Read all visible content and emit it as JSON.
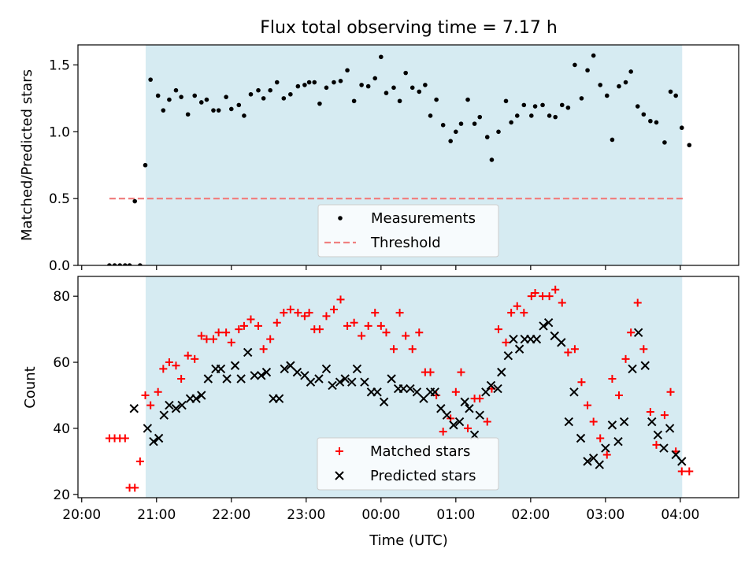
{
  "title": "Flux total observing time = 7.17 h",
  "xlabel": "Time (UTC)",
  "colors": {
    "band": "#add8e6",
    "measurement": "#000000",
    "threshold": "#f08080",
    "matched": "#ff0000",
    "predicted": "#000000"
  },
  "chart_data": [
    {
      "type": "scatter",
      "ylabel": "Matched/Predicted stars",
      "ylim": [
        0,
        1.65
      ],
      "yticks": [
        0.0,
        0.5,
        1.0,
        1.5
      ],
      "ytick_labels": [
        "0.0",
        "0.5",
        "1.0",
        "1.5"
      ],
      "xlim_hours": [
        19.95,
        28.78
      ],
      "shaded_span_hours": [
        20.855,
        28.025
      ],
      "legend": {
        "placement": "lower center",
        "entries": [
          "Measurements",
          "Threshold"
        ]
      },
      "threshold": {
        "name": "Threshold",
        "value": 0.5,
        "x_range_hours": [
          20.37,
          28.07
        ]
      },
      "series": [
        {
          "name": "Measurements",
          "marker": "dot",
          "x": [
            20.37,
            20.44,
            20.51,
            20.58,
            20.64,
            20.71,
            20.78,
            20.85,
            20.92,
            21.02,
            21.09,
            21.17,
            21.26,
            21.33,
            21.42,
            21.51,
            21.6,
            21.67,
            21.76,
            21.83,
            21.93,
            22.0,
            22.1,
            22.17,
            22.26,
            22.36,
            22.43,
            22.52,
            22.61,
            22.7,
            22.79,
            22.89,
            22.98,
            23.04,
            23.11,
            23.18,
            23.27,
            23.37,
            23.46,
            23.55,
            23.64,
            23.74,
            23.83,
            23.92,
            24.0,
            24.07,
            24.17,
            24.25,
            24.33,
            24.42,
            24.51,
            24.59,
            24.66,
            24.74,
            24.83,
            24.93,
            25.0,
            25.07,
            25.16,
            25.25,
            25.32,
            25.42,
            25.48,
            25.57,
            25.67,
            25.74,
            25.82,
            25.91,
            26.01,
            26.06,
            26.16,
            26.25,
            26.33,
            26.42,
            26.5,
            26.59,
            26.68,
            26.76,
            26.84,
            26.93,
            27.02,
            27.09,
            27.18,
            27.27,
            27.34,
            27.43,
            27.51,
            27.6,
            27.68,
            27.79,
            27.87,
            27.94,
            28.02,
            28.12
          ],
          "y": [
            0.0,
            0.0,
            0.0,
            0.0,
            0.0,
            0.48,
            0.0,
            0.75,
            1.39,
            1.27,
            1.16,
            1.24,
            1.31,
            1.26,
            1.13,
            1.27,
            1.22,
            1.24,
            1.16,
            1.16,
            1.26,
            1.17,
            1.2,
            1.12,
            1.28,
            1.31,
            1.25,
            1.31,
            1.37,
            1.25,
            1.28,
            1.34,
            1.35,
            1.37,
            1.37,
            1.21,
            1.33,
            1.37,
            1.38,
            1.46,
            1.23,
            1.35,
            1.34,
            1.4,
            1.56,
            1.29,
            1.33,
            1.23,
            1.44,
            1.33,
            1.3,
            1.35,
            1.12,
            1.24,
            1.05,
            0.93,
            1.0,
            1.06,
            1.24,
            1.06,
            1.11,
            0.96,
            0.79,
            1.0,
            1.23,
            1.07,
            1.12,
            1.2,
            1.12,
            1.19,
            1.2,
            1.12,
            1.11,
            1.2,
            1.18,
            1.5,
            1.25,
            1.46,
            1.57,
            1.35,
            1.27,
            0.94,
            1.34,
            1.37,
            1.45,
            1.19,
            1.13,
            1.08,
            1.07,
            0.92,
            1.3,
            1.27,
            1.03,
            0.9
          ]
        }
      ]
    },
    {
      "type": "scatter",
      "ylabel": "Count",
      "ylim": [
        19,
        86
      ],
      "yticks": [
        20,
        40,
        60,
        80
      ],
      "ytick_labels": [
        "20",
        "40",
        "60",
        "80"
      ],
      "xlim_hours": [
        19.95,
        28.78
      ],
      "shaded_span_hours": [
        20.855,
        28.025
      ],
      "xticks_hours": [
        20,
        21,
        22,
        23,
        24,
        25,
        26,
        27,
        28
      ],
      "xtick_labels": [
        "20:00",
        "21:00",
        "22:00",
        "23:00",
        "00:00",
        "01:00",
        "02:00",
        "03:00",
        "04:00"
      ],
      "legend": {
        "placement": "lower center",
        "entries": [
          "Matched stars",
          "Predicted stars"
        ]
      },
      "series": [
        {
          "name": "Matched stars",
          "marker": "plus",
          "x": [
            20.37,
            20.44,
            20.51,
            20.58,
            20.64,
            20.71,
            20.78,
            20.85,
            20.92,
            21.02,
            21.09,
            21.17,
            21.26,
            21.33,
            21.42,
            21.51,
            21.6,
            21.67,
            21.76,
            21.83,
            21.93,
            22.0,
            22.1,
            22.17,
            22.26,
            22.36,
            22.43,
            22.52,
            22.61,
            22.7,
            22.79,
            22.89,
            22.98,
            23.04,
            23.11,
            23.18,
            23.27,
            23.37,
            23.46,
            23.55,
            23.64,
            23.74,
            23.83,
            23.92,
            24.0,
            24.07,
            24.17,
            24.25,
            24.33,
            24.42,
            24.51,
            24.59,
            24.66,
            24.74,
            24.83,
            24.93,
            25.0,
            25.07,
            25.16,
            25.25,
            25.32,
            25.42,
            25.48,
            25.57,
            25.67,
            25.74,
            25.82,
            25.91,
            26.01,
            26.06,
            26.16,
            26.25,
            26.33,
            26.42,
            26.5,
            26.59,
            26.68,
            26.76,
            26.84,
            26.93,
            27.02,
            27.09,
            27.18,
            27.27,
            27.34,
            27.43,
            27.51,
            27.6,
            27.68,
            27.79,
            27.87,
            27.94,
            28.02,
            28.12
          ],
          "y": [
            37,
            37,
            37,
            37,
            22,
            22,
            30,
            50,
            47,
            51,
            58,
            60,
            59,
            55,
            62,
            61,
            68,
            67,
            67,
            69,
            69,
            66,
            70,
            71,
            73,
            71,
            64,
            67,
            72,
            75,
            76,
            75,
            74,
            75,
            70,
            70,
            74,
            76,
            79,
            71,
            72,
            68,
            71,
            75,
            71,
            69,
            64,
            75,
            68,
            64,
            69,
            57,
            57,
            50,
            39,
            43,
            51,
            57,
            40,
            49,
            49,
            42,
            52,
            70,
            66,
            75,
            77,
            75,
            80,
            81,
            80,
            80,
            82,
            78,
            63,
            64,
            54,
            47,
            42,
            37,
            32,
            55,
            50,
            61,
            69,
            78,
            64,
            45,
            35,
            44,
            51,
            33,
            27,
            27
          ]
        },
        {
          "name": "Predicted stars",
          "marker": "x",
          "x": [
            20.7,
            20.88,
            20.96,
            21.03,
            21.1,
            21.17,
            21.26,
            21.34,
            21.45,
            21.53,
            21.6,
            21.69,
            21.79,
            21.86,
            21.94,
            22.05,
            22.13,
            22.22,
            22.31,
            22.4,
            22.47,
            22.56,
            22.64,
            22.71,
            22.79,
            22.88,
            22.98,
            23.06,
            23.17,
            23.27,
            23.35,
            23.45,
            23.52,
            23.61,
            23.68,
            23.78,
            23.87,
            23.95,
            24.04,
            24.14,
            24.23,
            24.3,
            24.39,
            24.48,
            24.57,
            24.66,
            24.72,
            24.8,
            24.88,
            24.97,
            25.05,
            25.12,
            25.18,
            25.25,
            25.32,
            25.4,
            25.47,
            25.56,
            25.61,
            25.7,
            25.77,
            25.85,
            25.92,
            26.0,
            26.08,
            26.17,
            26.24,
            26.32,
            26.41,
            26.51,
            26.58,
            26.67,
            26.76,
            26.84,
            26.92,
            27.0,
            27.09,
            27.17,
            27.25,
            27.36,
            27.44,
            27.53,
            27.62,
            27.7,
            27.78,
            27.86,
            27.94,
            28.02
          ],
          "y": [
            46,
            40,
            36,
            37,
            44,
            47,
            46,
            47,
            49,
            49,
            50,
            55,
            58,
            58,
            55,
            59,
            55,
            63,
            56,
            56,
            57,
            49,
            49,
            58,
            59,
            57,
            56,
            54,
            55,
            58,
            53,
            54,
            55,
            54,
            58,
            54,
            51,
            51,
            48,
            55,
            52,
            52,
            52,
            51,
            49,
            51,
            51,
            46,
            44,
            41,
            42,
            48,
            46,
            38,
            44,
            51,
            53,
            52,
            57,
            62,
            67,
            64,
            67,
            67,
            67,
            71,
            72,
            68,
            66,
            42,
            51,
            37,
            30,
            31,
            29,
            34,
            41,
            36,
            42,
            58,
            69,
            59,
            42,
            38,
            34,
            40,
            32,
            30
          ]
        }
      ]
    }
  ]
}
